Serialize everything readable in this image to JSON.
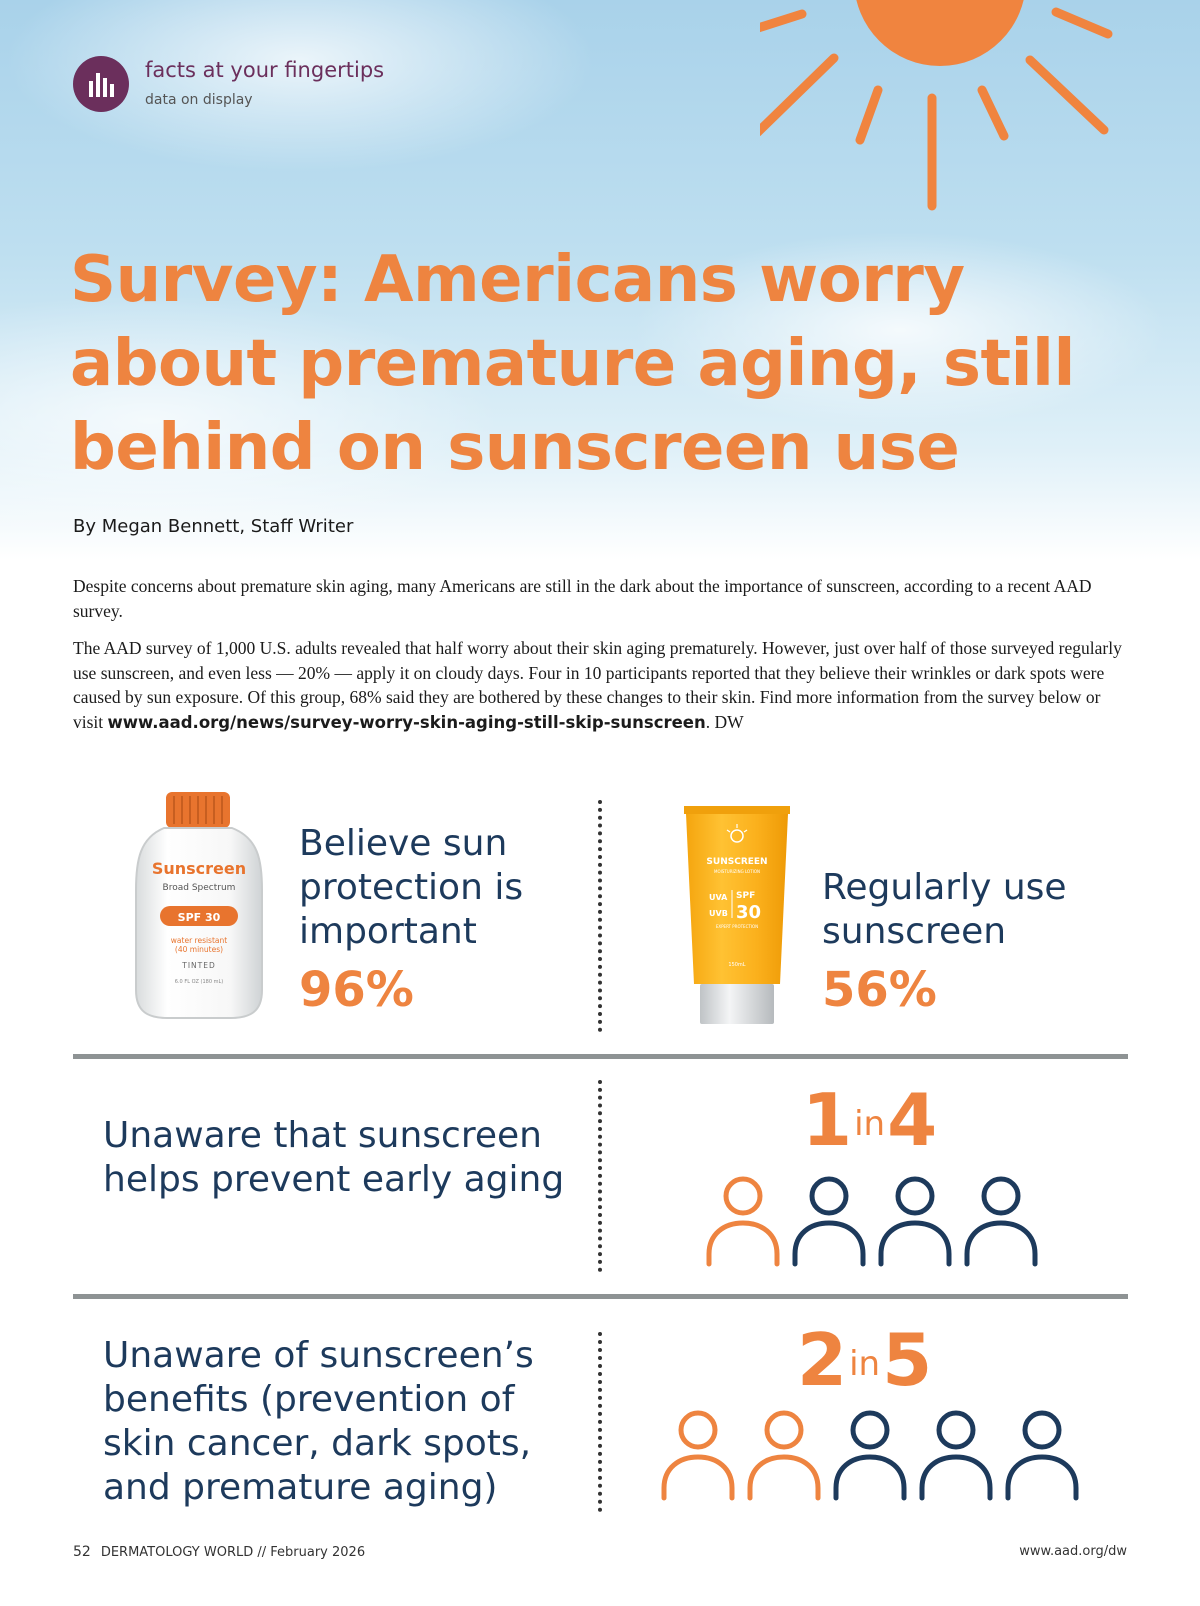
{
  "header": {
    "kicker_title": "facts at your fingertips",
    "kicker_subtitle": "data on display",
    "kicker_icon": "bar-chart-icon",
    "headline": "Survey: Americans worry about premature aging, still behind on sunscreen use",
    "byline": "By Megan Bennett, Staff Writer"
  },
  "body": {
    "paragraph_1": "Despite concerns about premature skin aging, many Americans are still in the dark about the importance of sunscreen, according to a recent AAD survey.",
    "paragraph_2": "The AAD survey of 1,000 U.S. adults revealed that half worry about their skin aging prematurely. However, just over half of those surveyed regularly use sunscreen, and even less — 20% — apply it on cloudy days. Four in 10 participants reported that they believe their wrinkles or dark spots were caused by sun exposure. Of this group, 68% said they are bothered by these changes to their skin. Find more information from the survey below or visit ",
    "link": "www.aad.org/news/survey-worry-skin-aging-still-skip-sunscreen",
    "signoff": ". DW"
  },
  "stats": {
    "believe": {
      "label": "Believe sun protection is important",
      "value": "96%"
    },
    "regular": {
      "label": "Regularly use sunscreen",
      "value": "56%"
    },
    "unaware_aging": {
      "label": "Unaware that sunscreen helps prevent early aging",
      "num": "1",
      "in": "in",
      "den": "4",
      "highlighted": 1,
      "total": 4
    },
    "unaware_benefits": {
      "label": "Unaware of sunscreen’s benefits (prevention of skin cancer, dark spots, and premature aging)",
      "num": "2",
      "in": "in",
      "den": "5",
      "highlighted": 2,
      "total": 5
    }
  },
  "bottle": {
    "brand": "Sunscreen",
    "sub": "Broad Spectrum",
    "spf": "SPF 30",
    "note1": "water resistant",
    "note2": "(40 minutes)",
    "tinted": "TINTED",
    "volume": "6.0 FL OZ (180 mL)"
  },
  "tube": {
    "brand": "SUNSCREEN",
    "sub": "MOISTURIZING LOTION",
    "uva": "UVA",
    "uvb": "UVB",
    "spf": "SPF",
    "spf_num": "30",
    "protect": "EXPERT PROTECTION",
    "volume": "150mL"
  },
  "footer": {
    "page": "52",
    "publication": "DERMATOLOGY WORLD // February 2026",
    "url": "www.aad.org/dw"
  },
  "colors": {
    "accent_orange": "#ee8440",
    "navy": "#1d3a5c",
    "plum": "#6b2f5c",
    "rule_gray": "#8e9394"
  }
}
